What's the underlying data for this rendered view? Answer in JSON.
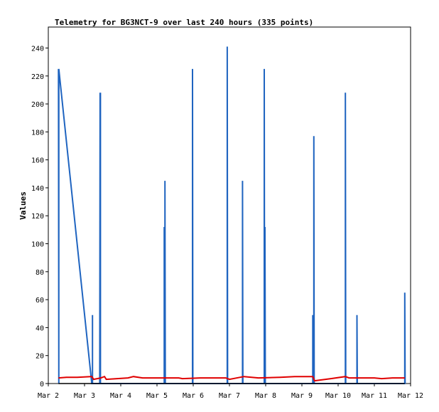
{
  "chart_data": {
    "type": "line",
    "title": "Telemetry for BG3NCT-9 over last 240 hours (335 points)",
    "xlabel": "",
    "ylabel": "Values",
    "x_ticks": [
      "Mar 2",
      "Mar 3",
      "Mar 4",
      "Mar 5",
      "Mar 6",
      "Mar 7",
      "Mar 8",
      "Mar 9",
      "Mar 10",
      "Mar 11",
      "Mar 12"
    ],
    "y_ticks": [
      0,
      20,
      40,
      60,
      80,
      100,
      120,
      140,
      160,
      180,
      200,
      220,
      240
    ],
    "xlim": [
      0,
      10
    ],
    "ylim": [
      0,
      255
    ],
    "grid": false,
    "legend": "none",
    "colors": {
      "blue_series": "#1f64c0",
      "red_series": "#e00000",
      "black_series": "#000000"
    },
    "series": [
      {
        "color": "#1f64c0",
        "x": [
          0.28,
          0.29,
          0.29,
          1.2,
          1.22,
          1.22,
          1.22,
          1.23,
          1.42,
          1.43,
          1.43,
          1.44,
          1.44,
          1.45,
          3.2,
          3.2,
          3.2,
          3.22,
          3.22,
          3.23,
          3.98,
          3.98,
          3.99,
          4.94,
          4.94,
          4.95,
          5.36,
          5.36,
          5.37,
          5.96,
          5.96,
          5.97,
          5.98,
          5.98,
          5.99,
          7.3,
          7.3,
          7.31,
          7.33,
          7.33,
          7.34,
          8.2,
          8.2,
          8.21,
          8.52,
          8.52,
          8.53,
          9.84,
          9.84,
          9.85
        ],
        "y": [
          225,
          0,
          225,
          0,
          0,
          49,
          0,
          0,
          0,
          208,
          0,
          208,
          0,
          0,
          0,
          112,
          0,
          0,
          145,
          0,
          0,
          225,
          0,
          0,
          241,
          0,
          0,
          145,
          0,
          0,
          225,
          0,
          0,
          112,
          0,
          0,
          49,
          0,
          0,
          177,
          0,
          0,
          208,
          0,
          0,
          49,
          0,
          0,
          65,
          0
        ]
      },
      {
        "color": "#e00000",
        "x": [
          0.28,
          0.5,
          0.8,
          1.2,
          1.25,
          1.45,
          1.55,
          1.6,
          1.9,
          2.2,
          2.35,
          2.6,
          3.0,
          3.6,
          3.7,
          4.2,
          4.9,
          5.0,
          5.4,
          5.8,
          6.4,
          6.8,
          7.3,
          7.35,
          7.8,
          8.2,
          8.3,
          8.6,
          9.0,
          9.2,
          9.5,
          9.84
        ],
        "y": [
          4,
          4.5,
          4.5,
          5,
          3,
          4,
          5,
          3,
          3.5,
          4,
          5,
          4,
          4,
          4,
          3.5,
          4,
          4,
          3,
          5,
          4,
          4.5,
          5,
          5,
          2,
          3.5,
          5,
          4,
          4,
          4,
          3.5,
          4,
          4
        ]
      },
      {
        "color": "#000000",
        "x": [
          0.28,
          9.84
        ],
        "y": [
          0,
          0
        ]
      }
    ]
  }
}
